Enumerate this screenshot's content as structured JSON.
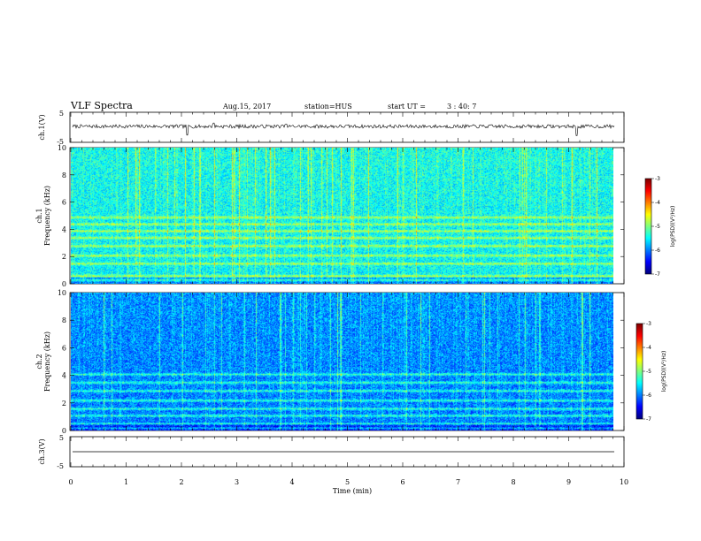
{
  "header": {
    "title": "VLF Spectra",
    "date": "Aug.15, 2017",
    "station": "station=HUS",
    "start_prefix": "start  UT  =",
    "start_time": "3 : 40: 7"
  },
  "colors": {
    "spectrogram_dark": "#000060",
    "spectrogram_mid": "#0a3cff",
    "spectrogram_light": "#24d6ff",
    "band_color": "#40f08a",
    "trace": "#000000"
  },
  "chart_data": [
    {
      "type": "line",
      "name": "ch1-waveform",
      "ylabel": "ch.1(V)",
      "ylim": [
        -5,
        5
      ],
      "y_ticks": [
        "5",
        "-5"
      ],
      "baseline": 0.3,
      "noise": 0.6,
      "spikes": [
        {
          "t": 2.1,
          "v": -2.6
        },
        {
          "t": 9.15,
          "v": -2.8
        },
        {
          "t": 2.58,
          "v": 1.4
        },
        {
          "t": 3.9,
          "v": 1.0
        }
      ]
    },
    {
      "type": "heatmap",
      "name": "ch1-spectrogram",
      "ylabel_line1": "ch.1",
      "ylabel_line2": "Frequency  (kHz)",
      "ylim": [
        0,
        10
      ],
      "y_ticks": [
        "0",
        "2",
        "4",
        "6",
        "8",
        "10"
      ],
      "xlim": [
        0,
        9.83
      ],
      "bands_khz": [
        0.3,
        0.6,
        1.5,
        2.1,
        2.8,
        3.4,
        3.9,
        4.4,
        4.9
      ],
      "base_level": 0.55,
      "seed": 17
    },
    {
      "type": "heatmap",
      "name": "ch2-spectrogram",
      "ylabel_line1": "ch.2",
      "ylabel_line2": "Frequency  (kHz)",
      "ylim": [
        0,
        10
      ],
      "y_ticks": [
        "0",
        "2",
        "4",
        "6",
        "8",
        "10"
      ],
      "xlim": [
        0,
        9.83
      ],
      "bands_khz": [
        0.2,
        0.5,
        1.1,
        1.6,
        2.2,
        2.9,
        3.5,
        4.1
      ],
      "base_level": 0.35,
      "seed": 91
    },
    {
      "type": "line",
      "name": "ch3-waveform",
      "ylabel": "ch.3(V)",
      "ylim": [
        -5,
        5
      ],
      "y_ticks": [
        "5",
        "-5"
      ],
      "baseline": 0,
      "noise": 0
    }
  ],
  "colorbars": [
    {
      "label": "log(PSD)(V²/Hz)",
      "ticks": [
        "-3",
        "-4",
        "-5",
        "-6",
        "-7"
      ],
      "range": [
        -7,
        -3
      ]
    },
    {
      "label": "log(PSD)(V²/Hz)",
      "ticks": [
        "-3",
        "-4",
        "-5",
        "-6",
        "-7"
      ],
      "range": [
        -7,
        -3
      ]
    }
  ],
  "x_axis": {
    "label": "Time  (min)",
    "xlim": [
      0,
      10
    ],
    "ticks": [
      "0",
      "1",
      "2",
      "3",
      "4",
      "5",
      "6",
      "7",
      "8",
      "9",
      "10"
    ]
  }
}
